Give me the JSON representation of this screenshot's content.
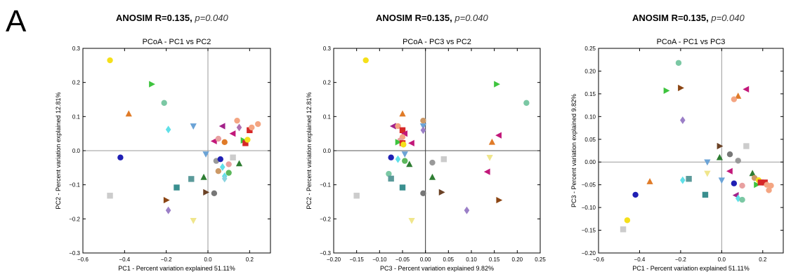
{
  "figure": {
    "panel_letter": "A"
  },
  "chart_data": [
    {
      "type": "scatter",
      "header": {
        "stat": "ANOSIM R=0.135,",
        "p": "p=0.040"
      },
      "title": "PCoA - PC1 vs PC2",
      "xlabel": "PC1 - Percent variation explained 51.11%",
      "ylabel": "PC2 - Percent variation explained 12.81%",
      "xlim": [
        -0.6,
        0.3
      ],
      "ylim": [
        -0.3,
        0.3
      ],
      "xticks": [
        -0.6,
        -0.4,
        -0.2,
        0.0,
        0.2
      ],
      "yticks": [
        -0.3,
        -0.2,
        -0.1,
        0.0,
        0.1,
        0.2,
        0.3
      ],
      "xtick_labels": [
        "−0.6",
        "−0.4",
        "−0.2",
        "0.0",
        "0.2"
      ],
      "ytick_labels": [
        "−0.3",
        "−0.2",
        "−0.1",
        "0.0",
        "0.1",
        "0.2",
        "0.3"
      ],
      "zero_lines": true,
      "points": [
        {
          "x": -0.47,
          "y": 0.265,
          "marker": "circle",
          "color": "#f5e01a"
        },
        {
          "x": -0.27,
          "y": 0.195,
          "marker": "tri-right",
          "color": "#3ec43e"
        },
        {
          "x": -0.38,
          "y": 0.108,
          "marker": "tri-up",
          "color": "#e07b28"
        },
        {
          "x": -0.21,
          "y": 0.14,
          "marker": "circle",
          "color": "#7bc8a4"
        },
        {
          "x": -0.19,
          "y": 0.062,
          "marker": "diamond",
          "color": "#5fe0e8"
        },
        {
          "x": -0.07,
          "y": 0.072,
          "marker": "tri-down",
          "color": "#6ba3d6"
        },
        {
          "x": -0.42,
          "y": -0.02,
          "marker": "circle",
          "color": "#1f1fb4"
        },
        {
          "x": -0.47,
          "y": -0.132,
          "marker": "square",
          "color": "#cccccc"
        },
        {
          "x": -0.2,
          "y": -0.145,
          "marker": "tri-right",
          "color": "#8b4513"
        },
        {
          "x": -0.19,
          "y": -0.175,
          "marker": "diamond",
          "color": "#9b7fc7"
        },
        {
          "x": -0.07,
          "y": -0.205,
          "marker": "tri-down",
          "color": "#f0e68c"
        },
        {
          "x": -0.15,
          "y": -0.108,
          "marker": "square",
          "color": "#3a8f8f"
        },
        {
          "x": -0.08,
          "y": -0.083,
          "marker": "square",
          "color": "#5b9a9a"
        },
        {
          "x": -0.02,
          "y": -0.078,
          "marker": "tri-up",
          "color": "#2e7d32"
        },
        {
          "x": -0.01,
          "y": -0.122,
          "marker": "tri-right",
          "color": "#6b4226"
        },
        {
          "x": 0.03,
          "y": -0.125,
          "marker": "circle",
          "color": "#777777"
        },
        {
          "x": 0.04,
          "y": -0.03,
          "marker": "circle",
          "color": "#999999"
        },
        {
          "x": 0.06,
          "y": -0.025,
          "marker": "circle",
          "color": "#1f1fb4"
        },
        {
          "x": 0.07,
          "y": -0.048,
          "marker": "diamond",
          "color": "#5fe0e8"
        },
        {
          "x": 0.05,
          "y": -0.06,
          "marker": "circle",
          "color": "#cc9966"
        },
        {
          "x": 0.1,
          "y": -0.065,
          "marker": "circle",
          "color": "#5cb85c"
        },
        {
          "x": 0.08,
          "y": -0.075,
          "marker": "diamond",
          "color": "#5fe0e8"
        },
        {
          "x": 0.08,
          "y": -0.082,
          "marker": "diamond",
          "color": "#8ad4e0"
        },
        {
          "x": 0.15,
          "y": -0.038,
          "marker": "tri-up",
          "color": "#2e7d32"
        },
        {
          "x": 0.12,
          "y": -0.02,
          "marker": "square",
          "color": "#cccccc"
        },
        {
          "x": 0.1,
          "y": -0.04,
          "marker": "circle",
          "color": "#e8a0a0"
        },
        {
          "x": 0.03,
          "y": 0.028,
          "marker": "tri-left",
          "color": "#c2187a"
        },
        {
          "x": 0.08,
          "y": 0.025,
          "marker": "circle",
          "color": "#e07b28"
        },
        {
          "x": 0.07,
          "y": 0.072,
          "marker": "tri-left",
          "color": "#a3228a"
        },
        {
          "x": 0.12,
          "y": 0.05,
          "marker": "tri-left",
          "color": "#c2187a"
        },
        {
          "x": 0.15,
          "y": 0.068,
          "marker": "diamond",
          "color": "#b06fb0"
        },
        {
          "x": 0.14,
          "y": 0.088,
          "marker": "circle",
          "color": "#f4a582"
        },
        {
          "x": 0.17,
          "y": 0.03,
          "marker": "tri-right",
          "color": "#3ec43e"
        },
        {
          "x": 0.18,
          "y": 0.022,
          "marker": "square",
          "color": "#d62728"
        },
        {
          "x": 0.19,
          "y": 0.032,
          "marker": "circle",
          "color": "#f5e01a"
        },
        {
          "x": 0.2,
          "y": 0.06,
          "marker": "square",
          "color": "#d62728"
        },
        {
          "x": 0.21,
          "y": 0.068,
          "marker": "circle",
          "color": "#f4a582"
        },
        {
          "x": 0.24,
          "y": 0.078,
          "marker": "circle",
          "color": "#f4a582"
        },
        {
          "x": -0.01,
          "y": -0.01,
          "marker": "tri-down",
          "color": "#6ba3d6"
        },
        {
          "x": 0.05,
          "y": 0.035,
          "marker": "circle",
          "color": "#e8a0a0"
        }
      ]
    },
    {
      "type": "scatter",
      "header": {
        "stat": "ANOSIM R=0.135,",
        "p": "p=0.040"
      },
      "title": "PCoA - PC3 vs PC2",
      "xlabel": "PC3 - Percent variation explained 9.82%",
      "ylabel": "PC2 - Percent variation explained 12.81%",
      "xlim": [
        -0.2,
        0.25
      ],
      "ylim": [
        -0.3,
        0.3
      ],
      "xticks": [
        -0.2,
        -0.15,
        -0.1,
        -0.05,
        0.0,
        0.05,
        0.1,
        0.15,
        0.2,
        0.25
      ],
      "yticks": [
        -0.3,
        -0.2,
        -0.1,
        0.0,
        0.1,
        0.2,
        0.3
      ],
      "xtick_labels": [
        "−0.20",
        "−0.15",
        "−0.10",
        "−0.05",
        "0.00",
        "0.05",
        "0.10",
        "0.15",
        "0.20",
        "0.25"
      ],
      "ytick_labels": [
        "−0.3",
        "−0.2",
        "−0.1",
        "0.0",
        "0.1",
        "0.2",
        "0.3"
      ],
      "zero_lines": true,
      "points": [
        {
          "x": -0.13,
          "y": 0.265,
          "marker": "circle",
          "color": "#f5e01a"
        },
        {
          "x": 0.155,
          "y": 0.195,
          "marker": "tri-right",
          "color": "#3ec43e"
        },
        {
          "x": 0.22,
          "y": 0.14,
          "marker": "circle",
          "color": "#7bc8a4"
        },
        {
          "x": -0.05,
          "y": 0.108,
          "marker": "tri-up",
          "color": "#e07b28"
        },
        {
          "x": -0.005,
          "y": 0.088,
          "marker": "circle",
          "color": "#cc9966"
        },
        {
          "x": -0.005,
          "y": 0.072,
          "marker": "tri-down",
          "color": "#6ba3d6"
        },
        {
          "x": -0.005,
          "y": 0.06,
          "marker": "diamond",
          "color": "#9b7fc7"
        },
        {
          "x": -0.07,
          "y": 0.072,
          "marker": "tri-left",
          "color": "#a3228a"
        },
        {
          "x": -0.06,
          "y": 0.072,
          "marker": "circle",
          "color": "#f4a582"
        },
        {
          "x": -0.05,
          "y": 0.06,
          "marker": "square",
          "color": "#d62728"
        },
        {
          "x": -0.045,
          "y": 0.05,
          "marker": "tri-left",
          "color": "#c2187a"
        },
        {
          "x": -0.05,
          "y": 0.04,
          "marker": "circle",
          "color": "#f4a582"
        },
        {
          "x": -0.055,
          "y": 0.03,
          "marker": "circle",
          "color": "#e8a0a0"
        },
        {
          "x": -0.06,
          "y": 0.025,
          "marker": "tri-right",
          "color": "#3ec43e"
        },
        {
          "x": -0.05,
          "y": 0.022,
          "marker": "square",
          "color": "#d62728"
        },
        {
          "x": -0.048,
          "y": 0.018,
          "marker": "circle",
          "color": "#f5e01a"
        },
        {
          "x": -0.03,
          "y": 0.022,
          "marker": "tri-left",
          "color": "#c2187a"
        },
        {
          "x": 0.16,
          "y": 0.045,
          "marker": "tri-left",
          "color": "#c2187a"
        },
        {
          "x": 0.145,
          "y": 0.025,
          "marker": "tri-up",
          "color": "#e07b28"
        },
        {
          "x": -0.045,
          "y": -0.01,
          "marker": "tri-down",
          "color": "#6ba3d6"
        },
        {
          "x": -0.075,
          "y": -0.02,
          "marker": "circle",
          "color": "#1f1fb4"
        },
        {
          "x": -0.06,
          "y": -0.025,
          "marker": "diamond",
          "color": "#5fe0e8"
        },
        {
          "x": -0.045,
          "y": -0.03,
          "marker": "circle",
          "color": "#5cb85c"
        },
        {
          "x": -0.035,
          "y": -0.04,
          "marker": "tri-up",
          "color": "#2e7d32"
        },
        {
          "x": 0.015,
          "y": -0.035,
          "marker": "circle",
          "color": "#999999"
        },
        {
          "x": 0.04,
          "y": -0.025,
          "marker": "square",
          "color": "#cccccc"
        },
        {
          "x": 0.14,
          "y": -0.02,
          "marker": "tri-down",
          "color": "#f0e68c"
        },
        {
          "x": 0.135,
          "y": -0.062,
          "marker": "tri-left",
          "color": "#c2187a"
        },
        {
          "x": -0.08,
          "y": -0.068,
          "marker": "circle",
          "color": "#7bc8a4"
        },
        {
          "x": -0.075,
          "y": -0.082,
          "marker": "square",
          "color": "#5b9a9a"
        },
        {
          "x": -0.05,
          "y": -0.108,
          "marker": "square",
          "color": "#3a8f8f"
        },
        {
          "x": 0.015,
          "y": -0.078,
          "marker": "tri-up",
          "color": "#2e7d32"
        },
        {
          "x": -0.005,
          "y": -0.125,
          "marker": "circle",
          "color": "#777777"
        },
        {
          "x": 0.035,
          "y": -0.122,
          "marker": "tri-right",
          "color": "#6b4226"
        },
        {
          "x": -0.15,
          "y": -0.132,
          "marker": "square",
          "color": "#cccccc"
        },
        {
          "x": 0.16,
          "y": -0.145,
          "marker": "tri-right",
          "color": "#8b4513"
        },
        {
          "x": 0.09,
          "y": -0.175,
          "marker": "diamond",
          "color": "#9b7fc7"
        },
        {
          "x": -0.03,
          "y": -0.205,
          "marker": "tri-down",
          "color": "#f0e68c"
        }
      ]
    },
    {
      "type": "scatter",
      "header": {
        "stat": "ANOSIM R=0.135,",
        "p": "p=0.040"
      },
      "title": "PCoA - PC1 vs PC3",
      "xlabel": "PC1 - Percent variation explained 51.11%",
      "ylabel": "PC3 - Percent variation explained 9.82%",
      "xlim": [
        -0.6,
        0.3
      ],
      "ylim": [
        -0.2,
        0.25
      ],
      "xticks": [
        -0.6,
        -0.4,
        -0.2,
        0.0,
        0.2
      ],
      "yticks": [
        -0.2,
        -0.15,
        -0.1,
        -0.05,
        0.0,
        0.05,
        0.1,
        0.15,
        0.2,
        0.25
      ],
      "xtick_labels": [
        "−0.6",
        "−0.4",
        "−0.2",
        "0.0",
        "0.2"
      ],
      "ytick_labels": [
        "−0.20",
        "−0.15",
        "−0.10",
        "−0.05",
        "0.00",
        "0.05",
        "0.10",
        "0.15",
        "0.20",
        "0.25"
      ],
      "zero_lines": true,
      "points": [
        {
          "x": -0.21,
          "y": 0.218,
          "marker": "circle",
          "color": "#7bc8a4"
        },
        {
          "x": -0.27,
          "y": 0.157,
          "marker": "tri-right",
          "color": "#3ec43e"
        },
        {
          "x": -0.2,
          "y": 0.163,
          "marker": "tri-right",
          "color": "#8b4513"
        },
        {
          "x": -0.19,
          "y": 0.092,
          "marker": "diamond",
          "color": "#9b7fc7"
        },
        {
          "x": 0.12,
          "y": 0.16,
          "marker": "tri-left",
          "color": "#c2187a"
        },
        {
          "x": 0.08,
          "y": 0.145,
          "marker": "tri-up",
          "color": "#e07b28"
        },
        {
          "x": 0.06,
          "y": 0.138,
          "marker": "circle",
          "color": "#f4a582"
        },
        {
          "x": 0.12,
          "y": 0.035,
          "marker": "square",
          "color": "#cccccc"
        },
        {
          "x": -0.01,
          "y": 0.035,
          "marker": "tri-right",
          "color": "#6b4226"
        },
        {
          "x": 0.04,
          "y": 0.017,
          "marker": "circle",
          "color": "#777777"
        },
        {
          "x": -0.01,
          "y": 0.01,
          "marker": "tri-up",
          "color": "#2e7d32"
        },
        {
          "x": -0.07,
          "y": 0.0,
          "marker": "tri-down",
          "color": "#6ba3d6"
        },
        {
          "x": 0.08,
          "y": 0.003,
          "marker": "circle",
          "color": "#999999"
        },
        {
          "x": 0.04,
          "y": -0.02,
          "marker": "tri-left",
          "color": "#c2187a"
        },
        {
          "x": -0.07,
          "y": -0.025,
          "marker": "tri-down",
          "color": "#f0e68c"
        },
        {
          "x": 0.0,
          "y": -0.04,
          "marker": "tri-down",
          "color": "#6ba3d6"
        },
        {
          "x": -0.19,
          "y": -0.04,
          "marker": "diamond",
          "color": "#5fe0e8"
        },
        {
          "x": -0.16,
          "y": -0.037,
          "marker": "square",
          "color": "#5b9a9a"
        },
        {
          "x": -0.35,
          "y": -0.043,
          "marker": "tri-up",
          "color": "#e07b28"
        },
        {
          "x": 0.06,
          "y": -0.047,
          "marker": "circle",
          "color": "#1f1fb4"
        },
        {
          "x": 0.1,
          "y": -0.052,
          "marker": "circle",
          "color": "#e8a0a0"
        },
        {
          "x": 0.15,
          "y": -0.025,
          "marker": "tri-up",
          "color": "#2e7d32"
        },
        {
          "x": 0.16,
          "y": -0.035,
          "marker": "circle",
          "color": "#cc9966"
        },
        {
          "x": 0.17,
          "y": -0.05,
          "marker": "tri-right",
          "color": "#3ec43e"
        },
        {
          "x": 0.18,
          "y": -0.04,
          "marker": "circle",
          "color": "#f5e01a"
        },
        {
          "x": 0.19,
          "y": -0.045,
          "marker": "square",
          "color": "#d62728"
        },
        {
          "x": 0.21,
          "y": -0.045,
          "marker": "square",
          "color": "#d62728"
        },
        {
          "x": 0.22,
          "y": -0.05,
          "marker": "circle",
          "color": "#f4a582"
        },
        {
          "x": 0.24,
          "y": -0.052,
          "marker": "circle",
          "color": "#f4a582"
        },
        {
          "x": 0.23,
          "y": -0.062,
          "marker": "circle",
          "color": "#f4a582"
        },
        {
          "x": 0.07,
          "y": -0.073,
          "marker": "tri-left",
          "color": "#a3228a"
        },
        {
          "x": -0.08,
          "y": -0.072,
          "marker": "square",
          "color": "#3a8f8f"
        },
        {
          "x": 0.08,
          "y": -0.08,
          "marker": "diamond",
          "color": "#5fe0e8"
        },
        {
          "x": 0.1,
          "y": -0.083,
          "marker": "circle",
          "color": "#7bc8a4"
        },
        {
          "x": -0.42,
          "y": -0.072,
          "marker": "circle",
          "color": "#1f1fb4"
        },
        {
          "x": -0.46,
          "y": -0.128,
          "marker": "circle",
          "color": "#f5e01a"
        },
        {
          "x": -0.48,
          "y": -0.148,
          "marker": "square",
          "color": "#cccccc"
        }
      ]
    }
  ]
}
